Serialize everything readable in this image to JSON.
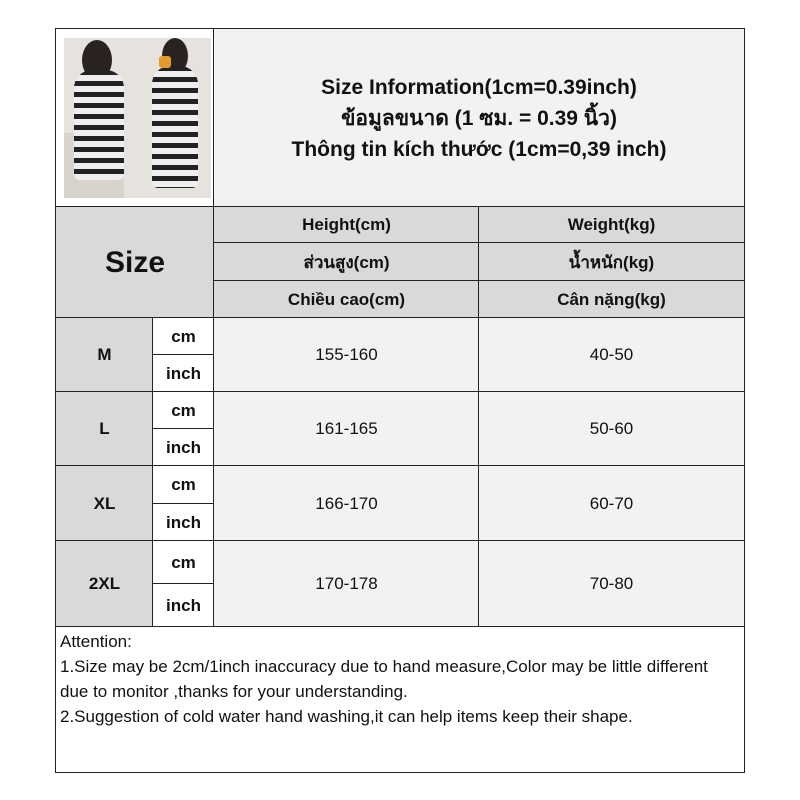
{
  "title_lines": [
    "Size Information(1cm=0.39inch)",
    "ข้อมูลขนาด (1 ซม. = 0.39 นิ้ว)",
    "Thông tin kích thước (1cm=0,39 inch)"
  ],
  "size_header": "Size",
  "columns": [
    {
      "labels": [
        "Height(cm)",
        "ส่วนสูง(cm)",
        "Chiều cao(cm)"
      ]
    },
    {
      "labels": [
        "Weight(kg)",
        "น้ำหนัก(kg)",
        "Cân nặng(kg)"
      ]
    }
  ],
  "units": [
    "cm",
    "inch"
  ],
  "rows": [
    {
      "size": "M",
      "height": "155-160",
      "weight": "40-50"
    },
    {
      "size": "L",
      "height": "161-165",
      "weight": "50-60"
    },
    {
      "size": "XL",
      "height": "166-170",
      "weight": "60-70"
    },
    {
      "size": "2XL",
      "height": "170-178",
      "weight": "70-80"
    }
  ],
  "attention": {
    "heading": "Attention:",
    "lines": [
      "1.Size may be 2cm/1inch inaccuracy due to hand measure,Color may be little different due to monitor ,thanks for your understanding.",
      "2.Suggestion of cold water hand washing,it can help items keep their shape."
    ]
  },
  "colors": {
    "header_gray": "#d9d9d9",
    "cell_light": "#f2f2f2",
    "border": "#222222"
  }
}
